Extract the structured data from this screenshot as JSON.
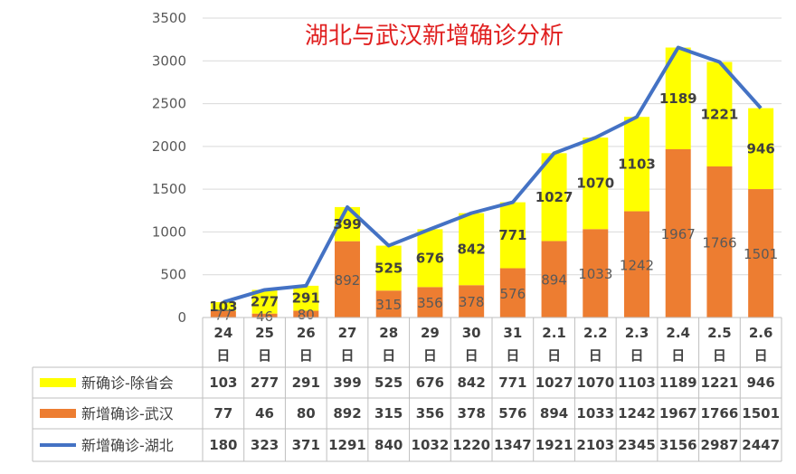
{
  "chart_data": {
    "type": "bar",
    "title": "湖北与武汉新增确诊分析",
    "categories": [
      [
        "24",
        "日"
      ],
      [
        "25",
        "日"
      ],
      [
        "26",
        "日"
      ],
      [
        "27",
        "日"
      ],
      [
        "28",
        "日"
      ],
      [
        "29",
        "日"
      ],
      [
        "30",
        "日"
      ],
      [
        "31",
        "日"
      ],
      [
        "2.1",
        "日"
      ],
      [
        "2.2",
        "日"
      ],
      [
        "2.3",
        "日"
      ],
      [
        "2.4",
        "日"
      ],
      [
        "2.5",
        "日"
      ],
      [
        "2.6",
        "日"
      ]
    ],
    "series": [
      {
        "name": "新确诊-除省会",
        "type": "stacked-bar",
        "color": "#ffff00",
        "values": [
          103,
          277,
          291,
          399,
          525,
          676,
          842,
          771,
          1027,
          1070,
          1103,
          1189,
          1221,
          946
        ]
      },
      {
        "name": "新增确诊-武汉",
        "type": "stacked-bar",
        "color": "#ed7d31",
        "values": [
          77,
          46,
          80,
          892,
          315,
          356,
          378,
          576,
          894,
          1033,
          1242,
          1967,
          1766,
          1501
        ]
      },
      {
        "name": "新增确诊-湖北",
        "type": "line",
        "color": "#4472c4",
        "values": [
          180,
          323,
          371,
          1291,
          840,
          1032,
          1220,
          1347,
          1921,
          2103,
          2345,
          3156,
          2987,
          2447
        ]
      }
    ],
    "ylim": [
      0,
      3500
    ],
    "yticks": [
      "0",
      "500",
      "1000",
      "1500",
      "2000",
      "2500",
      "3000",
      "3500"
    ],
    "grid": true,
    "data_table": true
  }
}
